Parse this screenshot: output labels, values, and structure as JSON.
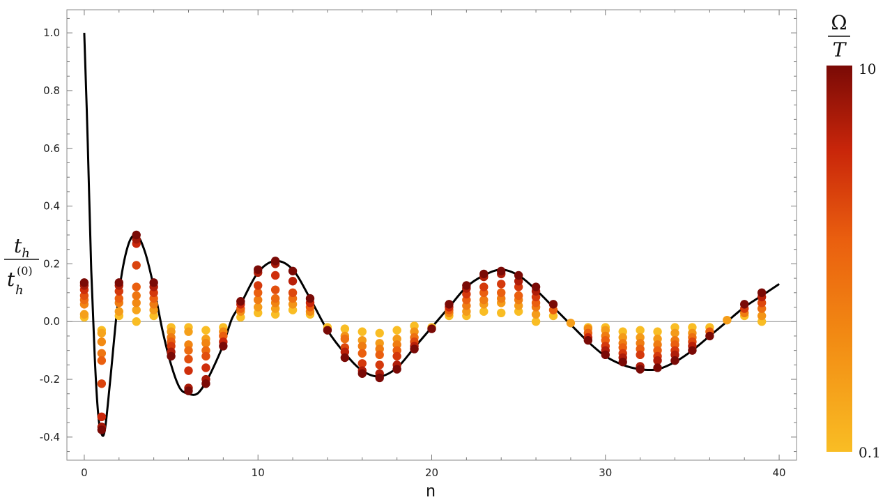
{
  "chart_data": {
    "type": "scatter",
    "xlabel": "n",
    "ylabel": {
      "numerator_base": "t",
      "numerator_sub": "h",
      "denominator_base": "t",
      "denominator_sub": "h",
      "denominator_sup": "(0)"
    },
    "xlim": [
      -1,
      41
    ],
    "ylim": [
      -0.48,
      1.08
    ],
    "x_ticks": [
      0,
      10,
      20,
      30,
      40
    ],
    "y_ticks": [
      -0.4,
      -0.2,
      0.0,
      0.2,
      0.4,
      0.6,
      0.8,
      1.0
    ],
    "x_tick_labels": [
      "0",
      "10",
      "20",
      "30",
      "40"
    ],
    "y_tick_labels": [
      "-0.4",
      "-0.2",
      "0.0",
      "0.2",
      "0.4",
      "0.6",
      "0.8",
      "1.0"
    ],
    "zero_line": true,
    "grid": false,
    "curve": {
      "color": "#000000",
      "x": [
        0,
        0.2,
        0.4,
        0.6,
        0.8,
        1.0,
        1.2,
        1.5,
        2.0,
        2.5,
        3.0,
        3.5,
        4.0,
        4.5,
        5.0,
        5.5,
        6.0,
        6.5,
        7.0,
        7.5,
        8.0,
        8.5,
        9.0,
        10.0,
        11.0,
        12.0,
        13.0,
        14.0,
        15.0,
        16.0,
        17.0,
        18.0,
        19.0,
        20.0,
        21.0,
        22.0,
        23.0,
        24.0,
        25.0,
        26.0,
        27.0,
        28.0,
        29.0,
        30.0,
        31.0,
        32.0,
        33.0,
        34.0,
        35.0,
        36.0,
        37.0,
        38.0,
        39.0,
        40.0
      ],
      "y": [
        1.0,
        0.62,
        0.18,
        -0.12,
        -0.32,
        -0.39,
        -0.37,
        -0.2,
        0.1,
        0.26,
        0.3,
        0.24,
        0.12,
        -0.03,
        -0.15,
        -0.23,
        -0.25,
        -0.25,
        -0.21,
        -0.15,
        -0.08,
        0.01,
        0.06,
        0.17,
        0.21,
        0.18,
        0.08,
        -0.03,
        -0.11,
        -0.17,
        -0.19,
        -0.16,
        -0.09,
        -0.02,
        0.05,
        0.12,
        0.16,
        0.18,
        0.16,
        0.11,
        0.05,
        -0.01,
        -0.07,
        -0.12,
        -0.15,
        -0.165,
        -0.165,
        -0.14,
        -0.1,
        -0.05,
        0.0,
        0.05,
        0.09,
        0.13
      ]
    },
    "series": [
      {
        "x": 0,
        "values": [
          0.135,
          0.125,
          0.11,
          0.09,
          0.075,
          0.06,
          0.025,
          0.015
        ]
      },
      {
        "x": 1,
        "values": [
          -0.375,
          -0.365,
          -0.33,
          -0.215,
          -0.135,
          -0.11,
          -0.07,
          -0.04,
          -0.03
        ]
      },
      {
        "x": 2,
        "values": [
          0.135,
          0.125,
          0.105,
          0.08,
          0.065,
          0.035,
          0.02
        ]
      },
      {
        "x": 3,
        "values": [
          0.3,
          0.285,
          0.27,
          0.195,
          0.12,
          0.09,
          0.065,
          0.04,
          0.0
        ]
      },
      {
        "x": 4,
        "values": [
          0.135,
          0.12,
          0.1,
          0.08,
          0.06,
          0.04,
          0.02
        ]
      },
      {
        "x": 5,
        "values": [
          -0.12,
          -0.105,
          -0.085,
          -0.07,
          -0.055,
          -0.035,
          -0.02
        ]
      },
      {
        "x": 6,
        "values": [
          -0.24,
          -0.23,
          -0.17,
          -0.13,
          -0.1,
          -0.08,
          -0.035,
          -0.02
        ]
      },
      {
        "x": 7,
        "values": [
          -0.215,
          -0.2,
          -0.16,
          -0.12,
          -0.1,
          -0.075,
          -0.06,
          -0.03
        ]
      },
      {
        "x": 8,
        "values": [
          -0.085,
          -0.07,
          -0.05,
          -0.035,
          -0.02
        ]
      },
      {
        "x": 9,
        "values": [
          0.07,
          0.06,
          0.045,
          0.035,
          0.015
        ]
      },
      {
        "x": 10,
        "values": [
          0.18,
          0.17,
          0.125,
          0.1,
          0.075,
          0.05,
          0.03
        ]
      },
      {
        "x": 11,
        "values": [
          0.21,
          0.2,
          0.16,
          0.11,
          0.08,
          0.065,
          0.045,
          0.025
        ]
      },
      {
        "x": 12,
        "values": [
          0.175,
          0.14,
          0.1,
          0.08,
          0.06,
          0.04
        ]
      },
      {
        "x": 13,
        "values": [
          0.08,
          0.065,
          0.05,
          0.035,
          0.025
        ]
      },
      {
        "x": 14,
        "values": [
          -0.03,
          -0.02
        ]
      },
      {
        "x": 15,
        "values": [
          -0.125,
          -0.105,
          -0.09,
          -0.06,
          -0.05,
          -0.025
        ]
      },
      {
        "x": 16,
        "values": [
          -0.18,
          -0.17,
          -0.145,
          -0.11,
          -0.085,
          -0.065,
          -0.035
        ]
      },
      {
        "x": 17,
        "values": [
          -0.195,
          -0.18,
          -0.15,
          -0.115,
          -0.095,
          -0.075,
          -0.04
        ]
      },
      {
        "x": 18,
        "values": [
          -0.165,
          -0.15,
          -0.12,
          -0.1,
          -0.08,
          -0.06,
          -0.03
        ]
      },
      {
        "x": 19,
        "values": [
          -0.095,
          -0.085,
          -0.07,
          -0.055,
          -0.035,
          -0.015
        ]
      },
      {
        "x": 20,
        "values": [
          -0.025,
          -0.02
        ]
      },
      {
        "x": 21,
        "values": [
          0.06,
          0.05,
          0.04,
          0.03,
          0.02
        ]
      },
      {
        "x": 22,
        "values": [
          0.125,
          0.115,
          0.095,
          0.075,
          0.055,
          0.035,
          0.02
        ]
      },
      {
        "x": 23,
        "values": [
          0.165,
          0.155,
          0.12,
          0.1,
          0.075,
          0.06,
          0.035
        ]
      },
      {
        "x": 24,
        "values": [
          0.175,
          0.165,
          0.13,
          0.1,
          0.08,
          0.065,
          0.03
        ]
      },
      {
        "x": 25,
        "values": [
          0.16,
          0.14,
          0.12,
          0.09,
          0.075,
          0.055,
          0.035
        ]
      },
      {
        "x": 26,
        "values": [
          0.12,
          0.105,
          0.085,
          0.065,
          0.05,
          0.025,
          0.0
        ]
      },
      {
        "x": 27,
        "values": [
          0.06,
          0.04,
          0.02
        ]
      },
      {
        "x": 28,
        "values": [
          -0.005
        ]
      },
      {
        "x": 29,
        "values": [
          -0.065,
          -0.055,
          -0.04,
          -0.025,
          -0.02
        ]
      },
      {
        "x": 30,
        "values": [
          -0.115,
          -0.1,
          -0.085,
          -0.065,
          -0.05,
          -0.03,
          -0.02
        ]
      },
      {
        "x": 31,
        "values": [
          -0.14,
          -0.125,
          -0.11,
          -0.09,
          -0.075,
          -0.055,
          -0.035
        ]
      },
      {
        "x": 32,
        "values": [
          -0.165,
          -0.155,
          -0.115,
          -0.095,
          -0.075,
          -0.055,
          -0.03
        ]
      },
      {
        "x": 33,
        "values": [
          -0.16,
          -0.135,
          -0.12,
          -0.1,
          -0.08,
          -0.06,
          -0.035
        ]
      },
      {
        "x": 34,
        "values": [
          -0.135,
          -0.115,
          -0.1,
          -0.08,
          -0.065,
          -0.04,
          -0.02
        ]
      },
      {
        "x": 35,
        "values": [
          -0.1,
          -0.085,
          -0.07,
          -0.055,
          -0.04,
          -0.02
        ]
      },
      {
        "x": 36,
        "values": [
          -0.05,
          -0.035,
          -0.02
        ]
      },
      {
        "x": 37,
        "values": [
          0.005
        ]
      },
      {
        "x": 38,
        "values": [
          0.06,
          0.045,
          0.03,
          0.02
        ]
      },
      {
        "x": 39,
        "values": [
          0.1,
          0.085,
          0.065,
          0.045,
          0.02,
          0.0
        ]
      }
    ],
    "colorbar": {
      "title_numerator": "Ω",
      "title_denominator": "T",
      "max_label": "10",
      "min_label": "0.1",
      "colors": [
        "#f9bd24",
        "#f28a13",
        "#ea5f0f",
        "#c9260a",
        "#7a0a06"
      ]
    }
  }
}
